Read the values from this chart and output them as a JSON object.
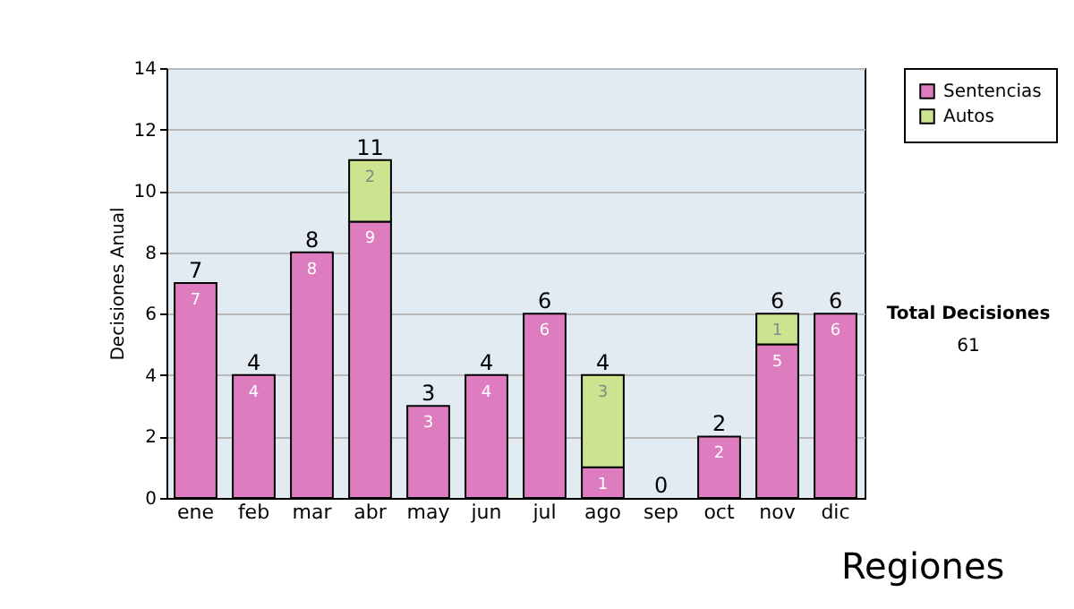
{
  "chart_data": {
    "type": "bar",
    "stacked": true,
    "ylabel": "Decisiones Anual",
    "categories": [
      "ene",
      "feb",
      "mar",
      "abr",
      "may",
      "jun",
      "jul",
      "ago",
      "sep",
      "oct",
      "nov",
      "dic"
    ],
    "series": [
      {
        "name": "Sentencias",
        "color": "#dd7dbf",
        "values": [
          7,
          4,
          8,
          9,
          3,
          4,
          6,
          1,
          0,
          2,
          5,
          6
        ],
        "value_labels": [
          "7",
          "4",
          "8",
          "9",
          "3",
          "4",
          "6",
          "1",
          null,
          "2",
          "5",
          "6"
        ]
      },
      {
        "name": "Autos",
        "color": "#cce38f",
        "values": [
          0,
          0,
          0,
          2,
          0,
          0,
          0,
          3,
          0,
          0,
          1,
          0
        ],
        "value_labels": [
          null,
          null,
          null,
          "2",
          null,
          null,
          null,
          "3",
          null,
          null,
          "1",
          null
        ]
      }
    ],
    "totals": [
      "7",
      "4",
      "8",
      "11",
      "3",
      "4",
      "6",
      "4",
      "0",
      "2",
      "6",
      "6"
    ],
    "ylim": [
      0,
      14
    ],
    "yticks": [
      0,
      2,
      4,
      6,
      8,
      10,
      12,
      14
    ],
    "grid": "y",
    "legend": "right",
    "annotations": [
      "Total Decisiones",
      "61",
      "Regiones"
    ]
  }
}
